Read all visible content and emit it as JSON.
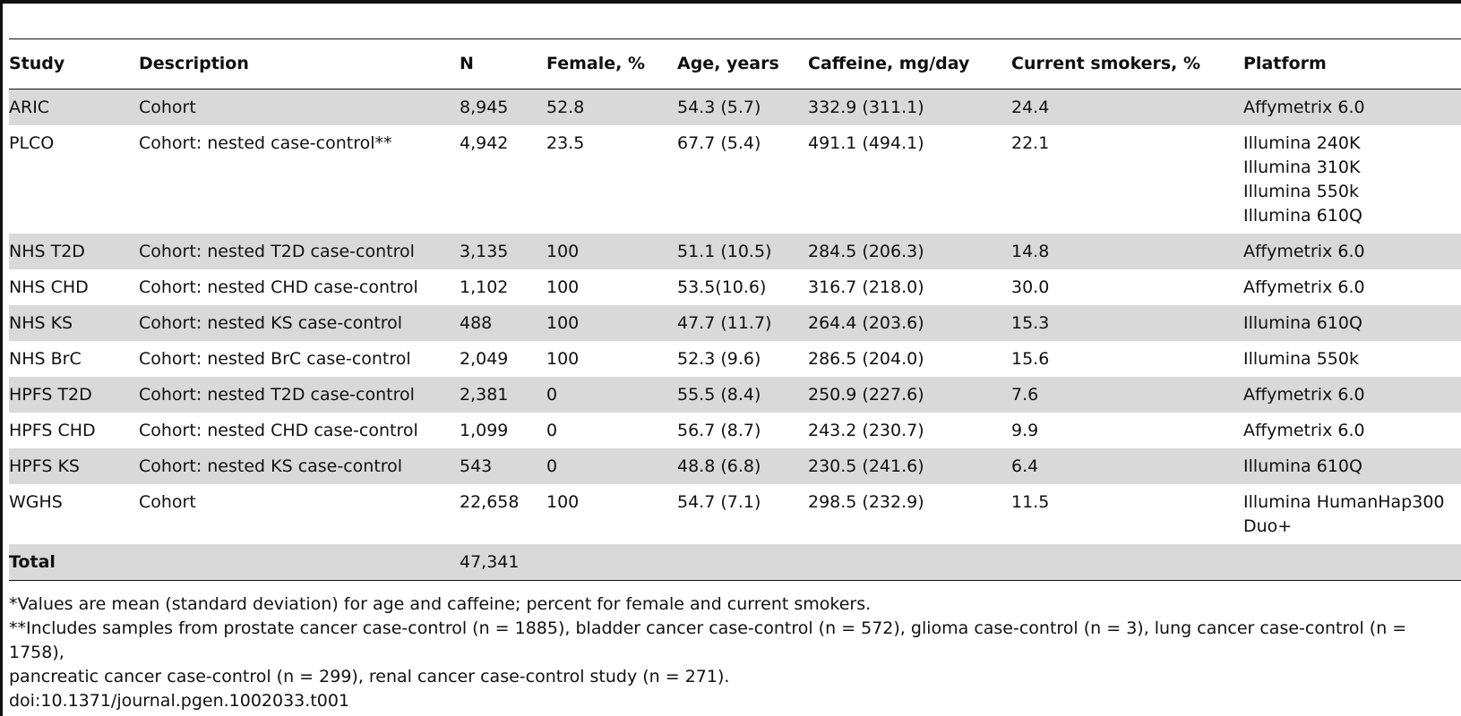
{
  "table": {
    "headers": [
      "Study",
      "Description",
      "N",
      "Female, %",
      "Age, years",
      "Caffeine, mg/day",
      "Current smokers, %",
      "Platform"
    ],
    "rows": [
      {
        "study": "ARIC",
        "description": "Cohort",
        "n": "8,945",
        "female": "52.8",
        "age": "54.3 (5.7)",
        "caffeine": "332.9 (311.1)",
        "smokers": "24.4",
        "platform": [
          "Affymetrix 6.0"
        ]
      },
      {
        "study": "PLCO",
        "description": "Cohort: nested case-control**",
        "n": "4,942",
        "female": "23.5",
        "age": "67.7 (5.4)",
        "caffeine": "491.1 (494.1)",
        "smokers": "22.1",
        "platform": [
          "Illumina 240K",
          "Illumina 310K",
          "Illumina 550k",
          "Illumina 610Q"
        ]
      },
      {
        "study": "NHS T2D",
        "description": "Cohort: nested T2D case-control",
        "n": "3,135",
        "female": "100",
        "age": "51.1 (10.5)",
        "caffeine": "284.5 (206.3)",
        "smokers": "14.8",
        "platform": [
          "Affymetrix 6.0"
        ]
      },
      {
        "study": "NHS CHD",
        "description": "Cohort: nested CHD case-control",
        "n": "1,102",
        "female": "100",
        "age": "53.5(10.6)",
        "caffeine": "316.7 (218.0)",
        "smokers": "30.0",
        "platform": [
          "Affymetrix 6.0"
        ]
      },
      {
        "study": "NHS KS",
        "description": "Cohort: nested KS case-control",
        "n": "488",
        "female": "100",
        "age": "47.7 (11.7)",
        "caffeine": "264.4 (203.6)",
        "smokers": "15.3",
        "platform": [
          "Illumina 610Q"
        ]
      },
      {
        "study": "NHS BrC",
        "description": "Cohort: nested BrC case-control",
        "n": "2,049",
        "female": "100",
        "age": "52.3 (9.6)",
        "caffeine": "286.5 (204.0)",
        "smokers": "15.6",
        "platform": [
          "Illumina 550k"
        ]
      },
      {
        "study": "HPFS T2D",
        "description": "Cohort: nested T2D case-control",
        "n": "2,381",
        "female": "0",
        "age": "55.5 (8.4)",
        "caffeine": "250.9 (227.6)",
        "smokers": "7.6",
        "platform": [
          "Affymetrix 6.0"
        ]
      },
      {
        "study": "HPFS CHD",
        "description": "Cohort: nested CHD case-control",
        "n": "1,099",
        "female": "0",
        "age": "56.7 (8.7)",
        "caffeine": "243.2 (230.7)",
        "smokers": "9.9",
        "platform": [
          "Affymetrix 6.0"
        ]
      },
      {
        "study": "HPFS KS",
        "description": "Cohort: nested KS case-control",
        "n": "543",
        "female": "0",
        "age": "48.8 (6.8)",
        "caffeine": "230.5 (241.6)",
        "smokers": "6.4",
        "platform": [
          "Illumina 610Q"
        ]
      },
      {
        "study": "WGHS",
        "description": "Cohort",
        "n": "22,658",
        "female": "100",
        "age": "54.7 (7.1)",
        "caffeine": "298.5 (232.9)",
        "smokers": "11.5",
        "platform": [
          "Illumina HumanHap300",
          "Duo+"
        ]
      }
    ],
    "total": {
      "label": "Total",
      "n": "47,341"
    }
  },
  "footnotes": {
    "note1": "*Values are mean (standard deviation) for age and caffeine; percent for female and current smokers.",
    "note2_line1": "**Includes samples from prostate cancer case-control (n = 1885), bladder cancer case-control (n = 572), glioma case-control (n = 3), lung cancer case-control (n = 1758),",
    "note2_line2": "pancreatic cancer case-control (n = 299), renal cancer case-control study (n = 271).",
    "doi": "doi:10.1371/journal.pgen.1002033.t001"
  },
  "colors": {
    "shade": "#d9d9d9",
    "rule": "#111111",
    "text": "#111111"
  }
}
